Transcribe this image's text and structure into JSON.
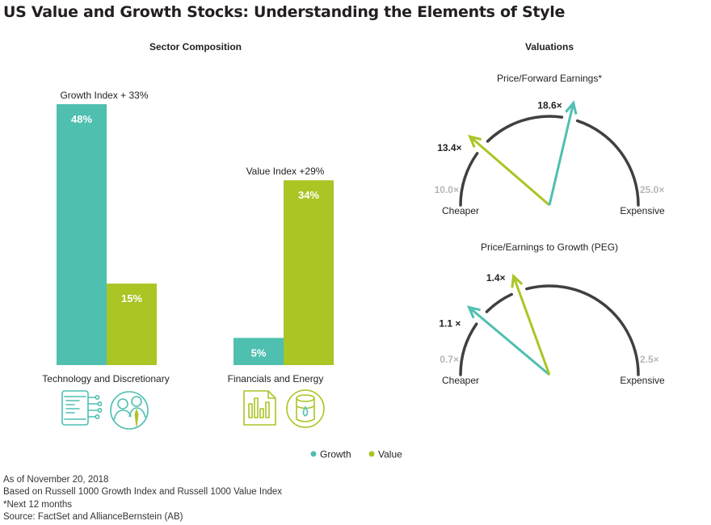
{
  "title": "US Value and Growth Stocks: Understanding the Elements of Style",
  "colors": {
    "growth": "#4fbfb0",
    "value": "#aac524",
    "dial": "#404040",
    "muted": "#b6b6b6"
  },
  "sector_panel": {
    "title": "Sector Composition",
    "groups": [
      {
        "label": "Technology and Discretionary",
        "annotation": "Growth Index + 33%",
        "icons": [
          "tablet-circuit-icon",
          "people-icon"
        ]
      },
      {
        "label": "Financials and Energy",
        "annotation": "Value Index +29%",
        "icons": [
          "bar-chart-document-icon",
          "oil-barrel-icon"
        ]
      }
    ]
  },
  "valuations_panel": {
    "title": "Valuations",
    "dials": [
      {
        "title": "Price/Forward Earnings*",
        "min_label": "10.0×",
        "max_label": "25.0×",
        "left_label": "Cheaper",
        "right_label": "Expensive",
        "value_label_value": "13.4×",
        "value_label_growth": "18.6×"
      },
      {
        "title": "Price/Earnings to Growth (PEG)",
        "min_label": "0.7×",
        "max_label": "2.5×",
        "left_label": "Cheaper",
        "right_label": "Expensive",
        "value_label_value": "1.4×",
        "value_label_growth": "1.1 ×"
      }
    ]
  },
  "legend": [
    {
      "name": "Growth",
      "color": "#4fbfb0"
    },
    {
      "name": "Value",
      "color": "#aac524"
    }
  ],
  "footnotes": [
    "As of November 20, 2018",
    "Based on Russell 1000 Growth Index and Russell 1000 Value Index",
    "*Next 12 months",
    "Source: FactSet and AllianceBernstein (AB)"
  ],
  "chart_data": [
    {
      "type": "bar",
      "title": "Sector Composition",
      "categories": [
        "Technology and Discretionary",
        "Financials and Energy"
      ],
      "series": [
        {
          "name": "Growth",
          "values": [
            48,
            5
          ],
          "labels": [
            "48%",
            "5%"
          ]
        },
        {
          "name": "Value",
          "values": [
            15,
            34
          ],
          "labels": [
            "15%",
            "34%"
          ]
        }
      ],
      "annotations": [
        "Growth Index + 33%",
        "Value Index +29%"
      ],
      "ylim": [
        0,
        48
      ],
      "legend": "bottom"
    },
    {
      "type": "gauge",
      "title": "Price/Forward Earnings*",
      "range": [
        10.0,
        25.0
      ],
      "series": [
        {
          "name": "Value",
          "value": 13.4
        },
        {
          "name": "Growth",
          "value": 18.6
        }
      ]
    },
    {
      "type": "gauge",
      "title": "Price/Earnings to Growth (PEG)",
      "range": [
        0.7,
        2.5
      ],
      "series": [
        {
          "name": "Growth",
          "value": 1.1
        },
        {
          "name": "Value",
          "value": 1.4
        }
      ]
    }
  ]
}
